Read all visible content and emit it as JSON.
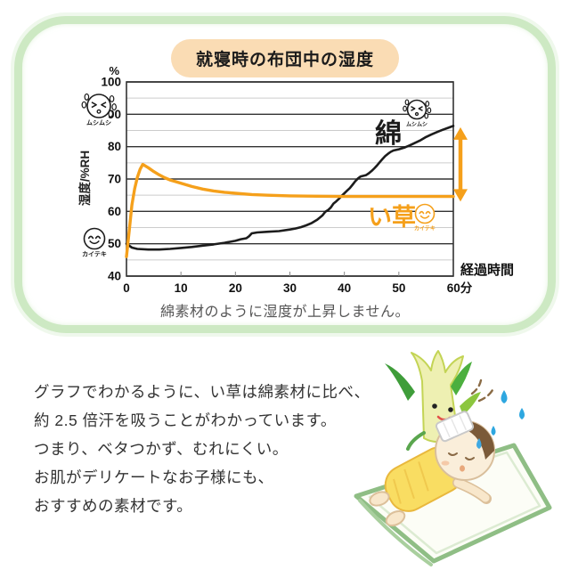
{
  "frame": {
    "color": "#cde9c3"
  },
  "chart_panel": {
    "title": "就寝時の布団中の湿度",
    "title_bg": "#fadcb4",
    "caption": "綿素材のように湿度が上昇しません。"
  },
  "chart_data": {
    "type": "line",
    "title": "就寝時の布団中の湿度",
    "x_axis": {
      "label": "経過時間",
      "ticks": [
        0,
        10,
        20,
        30,
        40,
        50,
        60
      ],
      "tick_labels": [
        "0",
        "10",
        "20",
        "30",
        "40",
        "50",
        "60分"
      ],
      "range": [
        0,
        60
      ]
    },
    "y_axis": {
      "label": "湿度/%RH",
      "unit": "%",
      "ticks": [
        40,
        50,
        60,
        70,
        80,
        90,
        100
      ],
      "minor_ticks": [
        45,
        55,
        65,
        75,
        85,
        95
      ],
      "range": [
        40,
        100
      ]
    },
    "grid": "horizontal-major-and-minor",
    "legend_position": "inline-labels-on-lines",
    "series": [
      {
        "name": "綿",
        "color": "#1c1c1c",
        "points": [
          [
            0,
            50
          ],
          [
            1,
            48.8
          ],
          [
            2,
            48.4
          ],
          [
            4,
            48.2
          ],
          [
            6,
            48.2
          ],
          [
            8,
            48.4
          ],
          [
            10,
            48.7
          ],
          [
            12,
            49.0
          ],
          [
            14,
            49.4
          ],
          [
            16,
            49.8
          ],
          [
            18,
            50.3
          ],
          [
            19,
            50.6
          ],
          [
            20,
            50.9
          ],
          [
            21,
            51.4
          ],
          [
            22,
            51.7
          ],
          [
            22.5,
            52.3
          ],
          [
            23,
            53.2
          ],
          [
            24,
            53.5
          ],
          [
            26,
            53.7
          ],
          [
            28,
            53.9
          ],
          [
            30,
            54.4
          ],
          [
            31,
            54.7
          ],
          [
            32,
            55.1
          ],
          [
            33,
            55.7
          ],
          [
            34,
            56.4
          ],
          [
            35,
            57.4
          ],
          [
            36,
            58.8
          ],
          [
            36.5,
            59.9
          ],
          [
            37,
            60.4
          ],
          [
            37.5,
            61.2
          ],
          [
            38,
            62.4
          ],
          [
            38.5,
            63.1
          ],
          [
            39,
            63.9
          ],
          [
            39.5,
            64.8
          ],
          [
            40,
            65.6
          ],
          [
            40.5,
            66.4
          ],
          [
            41,
            67.2
          ],
          [
            41.5,
            68.2
          ],
          [
            42,
            69.3
          ],
          [
            42.5,
            70.2
          ],
          [
            43,
            70.8
          ],
          [
            44,
            71.2
          ],
          [
            44.5,
            71.8
          ],
          [
            45,
            72.5
          ],
          [
            45.5,
            73.3
          ],
          [
            46,
            74.2
          ],
          [
            46.5,
            75.2
          ],
          [
            47,
            76.2
          ],
          [
            47.5,
            77.1
          ],
          [
            48,
            77.8
          ],
          [
            48.5,
            78.4
          ],
          [
            49,
            78.8
          ],
          [
            50,
            79.2
          ],
          [
            51,
            79.7
          ],
          [
            52,
            80.4
          ],
          [
            53,
            81.2
          ],
          [
            54,
            82.0
          ],
          [
            55,
            83.0
          ],
          [
            56,
            83.8
          ],
          [
            57,
            84.5
          ],
          [
            58,
            85.2
          ],
          [
            59,
            85.8
          ],
          [
            60,
            86.4
          ]
        ]
      },
      {
        "name": "い草",
        "color": "#f5a01b",
        "points": [
          [
            0,
            46
          ],
          [
            0.5,
            54
          ],
          [
            1,
            62
          ],
          [
            1.5,
            67
          ],
          [
            2,
            70.5
          ],
          [
            2.5,
            73
          ],
          [
            3,
            74.5
          ],
          [
            4,
            73.5
          ],
          [
            5,
            72.3
          ],
          [
            6,
            71.3
          ],
          [
            7,
            70.4
          ],
          [
            8,
            69.7
          ],
          [
            9,
            69.2
          ],
          [
            10,
            68.7
          ],
          [
            12,
            67.7
          ],
          [
            14,
            66.9
          ],
          [
            16,
            66.3
          ],
          [
            18,
            65.9
          ],
          [
            20,
            65.6
          ],
          [
            23,
            65.2
          ],
          [
            26,
            65.0
          ],
          [
            30,
            64.8
          ],
          [
            35,
            64.7
          ],
          [
            40,
            64.6
          ],
          [
            45,
            64.6
          ],
          [
            50,
            64.6
          ],
          [
            55,
            64.6
          ],
          [
            60,
            64.6
          ]
        ]
      }
    ],
    "annotations": {
      "muggy_face_label": "ムシムシ",
      "comfy_face_label": "カイテキ",
      "gap_arrow": {
        "color": "#f5a01b",
        "from_percent": 86,
        "to_percent": 63
      }
    }
  },
  "body_text": {
    "lines": [
      "グラフでわかるように、い草は綿素材に比べ、",
      "約 2.5 倍汗を吸うことがわかっています。",
      "つまり、ベタつかず、むれにくい。",
      "お肌がデリケートなお子様にも、",
      "おすすめの素材です。"
    ]
  },
  "icons": {
    "muggy-face-icon": "sweating uncomfortable face",
    "comfy-face-icon": "smiling comfortable face",
    "updown-arrow-icon": "double-headed arrow showing humidity gap",
    "illustration-igusa-child": "hand-drawn rush-grass mascot beside child sleeping on rush mat"
  }
}
